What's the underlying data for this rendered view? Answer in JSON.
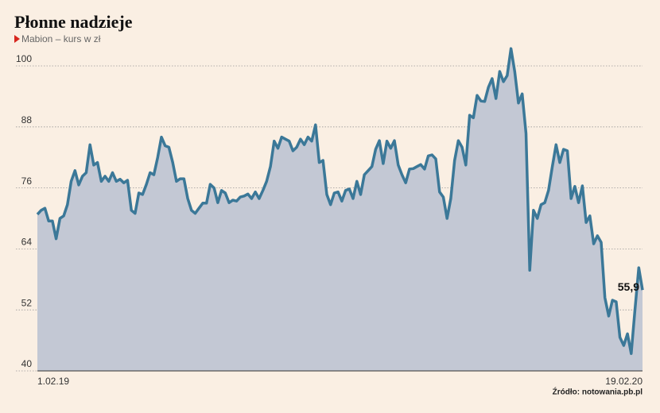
{
  "chart_data": {
    "type": "area",
    "title": "Płonne nadzieje",
    "subtitle": "Mabion – kurs w zł",
    "source": "Źródło: notowania.pb.pl",
    "line_color": "#3b7898",
    "fill_color": "#c3c8d4",
    "ylim": [
      40,
      104
    ],
    "yticks": [
      40,
      52,
      64,
      76,
      88,
      100
    ],
    "grid": true,
    "categories": [
      "1.02.19",
      null,
      null,
      null,
      null,
      null,
      null,
      null,
      null,
      null,
      null,
      null,
      null,
      null,
      null,
      null,
      null,
      null,
      null,
      null,
      null,
      null,
      null,
      null,
      null,
      null,
      null,
      null,
      null,
      null,
      null,
      null,
      null,
      null,
      null,
      null,
      null,
      null,
      null,
      null,
      null,
      null,
      null,
      null,
      null,
      null,
      null,
      null,
      null,
      null,
      null,
      null,
      null,
      null,
      null,
      null,
      null,
      null,
      null,
      null,
      null,
      null,
      null,
      null,
      null,
      null,
      null,
      null,
      null,
      null,
      null,
      null,
      null,
      null,
      null,
      null,
      null,
      null,
      null,
      null,
      null,
      null,
      null,
      null,
      null,
      null,
      null,
      null,
      null,
      null,
      null,
      null,
      null,
      null,
      null,
      null,
      null,
      null,
      null,
      null,
      null,
      null,
      null,
      null,
      null,
      null,
      null,
      null,
      null,
      null,
      null,
      null,
      null,
      null,
      null,
      null,
      null,
      null,
      null,
      null,
      null,
      null,
      null,
      null,
      null,
      null,
      null,
      null,
      null,
      null,
      null,
      null,
      null,
      null,
      null,
      null,
      null,
      null,
      null,
      null,
      null,
      null,
      null,
      null,
      null,
      null,
      null,
      null,
      null,
      null,
      null,
      null,
      null,
      null,
      null,
      null,
      null,
      null,
      null,
      null,
      null,
      "19.02.20"
    ],
    "values": [
      70.8,
      71.6,
      72,
      69.5,
      69.5,
      66,
      70,
      70.5,
      72.7,
      77.3,
      79.4,
      76.6,
      78.3,
      79,
      84.5,
      80.5,
      81,
      77.3,
      78.3,
      77.3,
      79,
      77.3,
      77.7,
      77,
      77.5,
      71.6,
      71,
      75,
      74.7,
      76.7,
      79,
      78.6,
      82,
      86,
      84.3,
      84,
      81,
      77.3,
      77.8,
      77.8,
      73.9,
      71.6,
      71,
      72,
      73,
      73,
      76.7,
      76,
      73.1,
      75.5,
      75,
      73.1,
      73.6,
      73.4,
      74.2,
      74.4,
      74.8,
      73.9,
      75.2,
      73.9,
      75.5,
      77.3,
      80.2,
      85.2,
      83.8,
      86,
      85.6,
      85.2,
      83.3,
      84,
      85.6,
      84.5,
      86,
      85.2,
      88.4,
      81,
      81.4,
      74.7,
      72.7,
      75,
      75.2,
      73.4,
      75.5,
      75.8,
      73.9,
      77.3,
      74.7,
      78.6,
      79.4,
      80.2,
      83.6,
      85.3,
      80.8,
      85.2,
      83.8,
      85.3,
      80.5,
      78.6,
      77,
      79.7,
      79.8,
      80.2,
      80.6,
      79.7,
      82.3,
      82.5,
      81.7,
      75.2,
      74.2,
      70,
      73.9,
      81.4,
      85.3,
      84,
      80.5,
      90.3,
      89.8,
      94.2,
      93.1,
      93,
      95.8,
      97.5,
      93.6,
      98.9,
      96.9,
      98.1,
      103.4,
      98.9,
      92.7,
      94.5,
      86.7,
      59.8,
      71.6,
      70,
      72.7,
      73.1,
      75.5,
      80.2,
      84.5,
      81,
      83.6,
      83.3,
      73.9,
      76.3,
      73.1,
      76.4,
      69.2,
      70.5,
      65,
      66.6,
      65.3,
      54.4,
      50.8,
      53.9,
      53.6,
      46.6,
      45,
      47.3,
      43.4,
      52,
      60.3,
      55.9
    ],
    "value_labels": [
      null,
      null,
      null,
      null,
      null,
      null,
      null,
      null,
      null,
      null,
      null,
      null,
      null,
      null,
      null,
      null,
      null,
      null,
      null,
      null,
      null,
      null,
      null,
      null,
      null,
      null,
      null,
      null,
      null,
      null,
      null,
      null,
      null,
      null,
      null,
      null,
      null,
      null,
      null,
      null,
      null,
      null,
      null,
      null,
      null,
      null,
      null,
      null,
      null,
      null,
      null,
      null,
      null,
      null,
      null,
      null,
      null,
      null,
      null,
      null,
      null,
      null,
      null,
      null,
      null,
      null,
      null,
      null,
      null,
      null,
      null,
      null,
      null,
      null,
      null,
      null,
      null,
      null,
      null,
      null,
      null,
      null,
      null,
      null,
      null,
      null,
      null,
      null,
      null,
      null,
      null,
      null,
      null,
      null,
      null,
      null,
      null,
      null,
      null,
      null,
      null,
      null,
      null,
      null,
      null,
      null,
      null,
      null,
      null,
      null,
      null,
      null,
      null,
      null,
      null,
      null,
      null,
      null,
      null,
      null,
      null,
      null,
      null,
      null,
      null,
      null,
      null,
      null,
      null,
      null,
      null,
      null,
      null,
      null,
      null,
      null,
      null,
      null,
      null,
      null,
      null,
      null,
      null,
      null,
      null,
      null,
      null,
      null,
      null,
      null,
      null,
      null,
      null,
      null,
      null,
      null,
      null,
      null,
      null,
      null,
      null,
      "55,9"
    ]
  }
}
